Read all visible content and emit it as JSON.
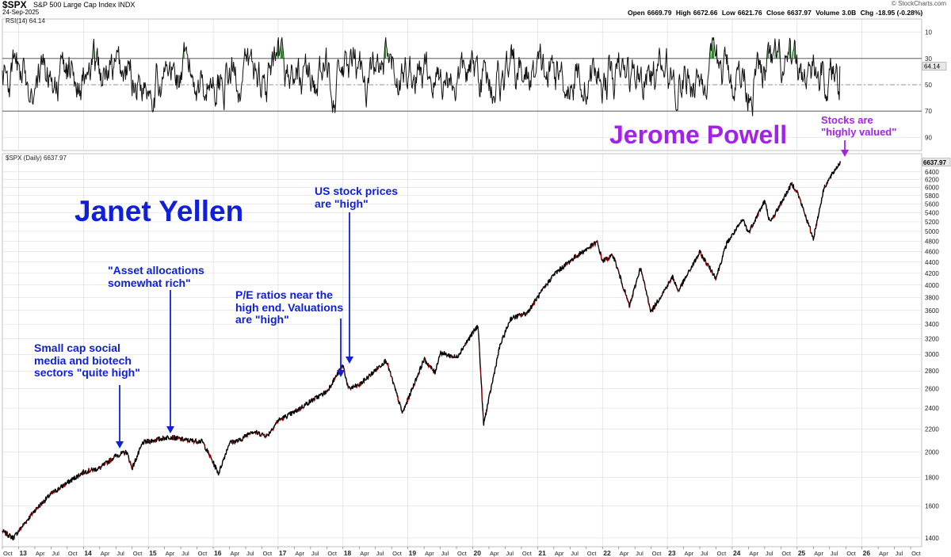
{
  "header": {
    "symbol": "$SPX",
    "name": "S&P 500 Large Cap Index INDX",
    "date": "24-Sep-2025",
    "credit": "© StockCharts.com",
    "quote": [
      {
        "label": "Open",
        "value": "6669.79"
      },
      {
        "label": "High",
        "value": "6672.66"
      },
      {
        "label": "Low",
        "value": "6621.76"
      },
      {
        "label": "Close",
        "value": "6637.97"
      },
      {
        "label": "Volume",
        "value": "3.0B"
      },
      {
        "label": "Chg",
        "value": "-18.95 (-0.28%)"
      }
    ]
  },
  "rsi_panel": {
    "label": "RSI(14) 64.14",
    "current_value_tag": "64.14",
    "tick_labels": [
      "90",
      "70",
      "50",
      "30",
      "10"
    ]
  },
  "price_panel": {
    "label": "$SPX (Daily) 6637.97",
    "current_value_tag": "6637.97",
    "tick_labels": [
      "6400",
      "6200",
      "6000",
      "5800",
      "5600",
      "5400",
      "5200",
      "5000",
      "4800",
      "4600",
      "4400",
      "4200",
      "4000",
      "3800",
      "3600",
      "3400",
      "3200",
      "3000",
      "2800",
      "2600",
      "2400",
      "2200",
      "2000",
      "1800",
      "1600",
      "1400"
    ]
  },
  "annotations": {
    "yellen_name": "Janet Yellen",
    "powell_name": "Jerome Powell",
    "a1": [
      "Small cap social",
      "media and biotech",
      "sectors \"quite high\""
    ],
    "a2": [
      "\"Asset allocations",
      "somewhat rich\""
    ],
    "a3": [
      "P/E ratios near the",
      "high end. Valuations",
      "are \"high\""
    ],
    "a4": [
      "US stock prices",
      "are \"high\""
    ],
    "a5": [
      "Stocks are",
      "\"highly valued\""
    ]
  },
  "colors": {
    "annotation_blue": "#1020d8",
    "annotation_purple": "#a322e8",
    "price_line": "#000000",
    "down_bar": "#cc0000",
    "rsi_overbought_fill": "#2a8a2a",
    "grid": "#d6d6d6"
  },
  "chart_data": [
    {
      "type": "line",
      "title": "$SPX S&P 500 Large Cap Index",
      "series": [
        {
          "name": "RSI(14)",
          "last": 64.14
        }
      ],
      "ylim": [
        0,
        100
      ],
      "reference_lines": [
        30,
        50,
        70
      ],
      "y_ticks": [
        10,
        30,
        50,
        70,
        90
      ],
      "grid": true
    },
    {
      "type": "line",
      "title": "$SPX (Daily)",
      "yscale": "log",
      "ylim": [
        1350,
        6900
      ],
      "y_ticks": [
        1400,
        1600,
        1800,
        2000,
        2200,
        2400,
        2600,
        2800,
        3000,
        3200,
        3400,
        3600,
        3800,
        4000,
        4200,
        4400,
        4600,
        4800,
        5000,
        5200,
        5400,
        5600,
        5800,
        6000,
        6200,
        6400
      ],
      "x_ticks": [
        "Oct",
        "13",
        "Apr",
        "Jul",
        "Oct",
        "14",
        "Apr",
        "Jul",
        "Oct",
        "15",
        "Apr",
        "Jul",
        "Oct",
        "16",
        "Apr",
        "Jul",
        "Oct",
        "17",
        "Apr",
        "Jul",
        "Oct",
        "18",
        "Apr",
        "Jul",
        "Oct",
        "19",
        "Apr",
        "Jul",
        "Oct",
        "20",
        "Apr",
        "Jul",
        "Oct",
        "21",
        "Apr",
        "Jul",
        "Oct",
        "22",
        "Apr",
        "Jul",
        "Oct",
        "23",
        "Apr",
        "Jul",
        "Oct",
        "24",
        "Apr",
        "Jul",
        "Oct",
        "25",
        "Apr",
        "Jul",
        "Oct",
        "26",
        "Apr",
        "Jul",
        "Oct"
      ],
      "x_year_ticks": [
        "13",
        "14",
        "15",
        "16",
        "17",
        "18",
        "19",
        "20",
        "21",
        "22",
        "23",
        "24",
        "25",
        "26"
      ],
      "series": [
        {
          "name": "$SPX",
          "x": [
            "2012-10",
            "2012-12",
            "2013-04",
            "2013-07",
            "2013-10",
            "2014-01",
            "2014-04",
            "2014-07",
            "2014-09",
            "2014-10",
            "2014-12",
            "2015-03",
            "2015-05",
            "2015-08",
            "2015-11",
            "2016-02",
            "2016-04",
            "2016-06",
            "2016-08",
            "2016-11",
            "2017-01",
            "2017-04",
            "2017-07",
            "2017-10",
            "2018-01",
            "2018-02",
            "2018-04",
            "2018-06",
            "2018-09",
            "2018-12",
            "2019-04",
            "2019-06",
            "2019-07",
            "2019-10",
            "2020-01",
            "2020-02",
            "2020-03",
            "2020-06",
            "2020-08",
            "2020-11",
            "2021-01",
            "2021-04",
            "2021-08",
            "2021-12",
            "2022-01",
            "2022-03",
            "2022-06",
            "2022-08",
            "2022-10",
            "2023-02",
            "2023-03",
            "2023-07",
            "2023-10",
            "2023-12",
            "2024-03",
            "2024-04",
            "2024-07",
            "2024-08",
            "2024-12",
            "2025-01",
            "2025-04",
            "2025-06",
            "2025-08",
            "2025-09"
          ],
          "values": [
            1440,
            1400,
            1570,
            1680,
            1760,
            1840,
            1870,
            1970,
            2000,
            1870,
            2080,
            2110,
            2130,
            2100,
            2090,
            1830,
            2080,
            2100,
            2180,
            2140,
            2280,
            2360,
            2470,
            2570,
            2870,
            2600,
            2640,
            2750,
            2930,
            2350,
            2940,
            2780,
            3020,
            2960,
            3280,
            3380,
            2240,
            3100,
            3480,
            3560,
            3800,
            4180,
            4500,
            4780,
            4420,
            4520,
            3660,
            4300,
            3580,
            4140,
            3900,
            4580,
            4120,
            4760,
            5250,
            4970,
            5670,
            5180,
            6090,
            5900,
            4850,
            6000,
            6450,
            6660
          ]
        }
      ],
      "grid": true
    }
  ]
}
